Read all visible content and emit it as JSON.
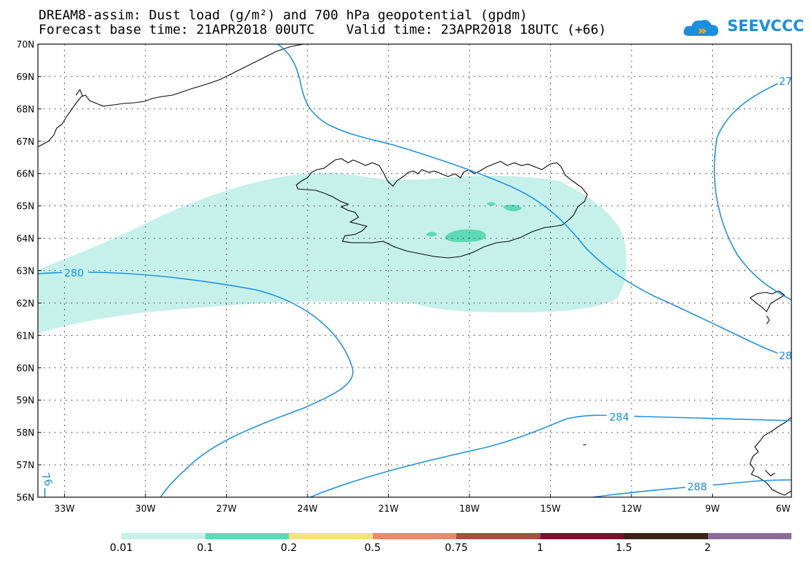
{
  "header": {
    "title_line1": "DREAM8-assim: Dust load (g/m²) and 700 hPa geopotential (gpdm)",
    "title_line2": "Forecast base time: 21APR2018 00UTC    Valid time: 23APR2018 18UTC (+66)",
    "logo_text": "SEEVCCC"
  },
  "map": {
    "lat_labels": [
      "70N",
      "69N",
      "68N",
      "67N",
      "66N",
      "65N",
      "64N",
      "63N",
      "62N",
      "61N",
      "60N",
      "59N",
      "58N",
      "57N",
      "56N"
    ],
    "lon_labels": [
      "33W",
      "30W",
      "27W",
      "24W",
      "21W",
      "18W",
      "15W",
      "12W",
      "9W",
      "6W"
    ],
    "contour_labels": {
      "c280": "280",
      "c284": "284",
      "c288": "288",
      "c276": "76",
      "c27": "27",
      "c28": "28"
    },
    "colors": {
      "dust_low": "#c6f0ea",
      "dust_mid": "#5dd9b3",
      "contour": "#1a8fe0"
    }
  },
  "colorbar": {
    "labels": [
      "0.01",
      "0.1",
      "0.2",
      "0.5",
      "0.75",
      "1",
      "1.5",
      "2"
    ],
    "colors": [
      "#c6f0ea",
      "#5dd9b3",
      "#f5e27a",
      "#e8896a",
      "#a8503e",
      "#7a0f2e",
      "#3a2314",
      "#8e6a9c"
    ]
  }
}
